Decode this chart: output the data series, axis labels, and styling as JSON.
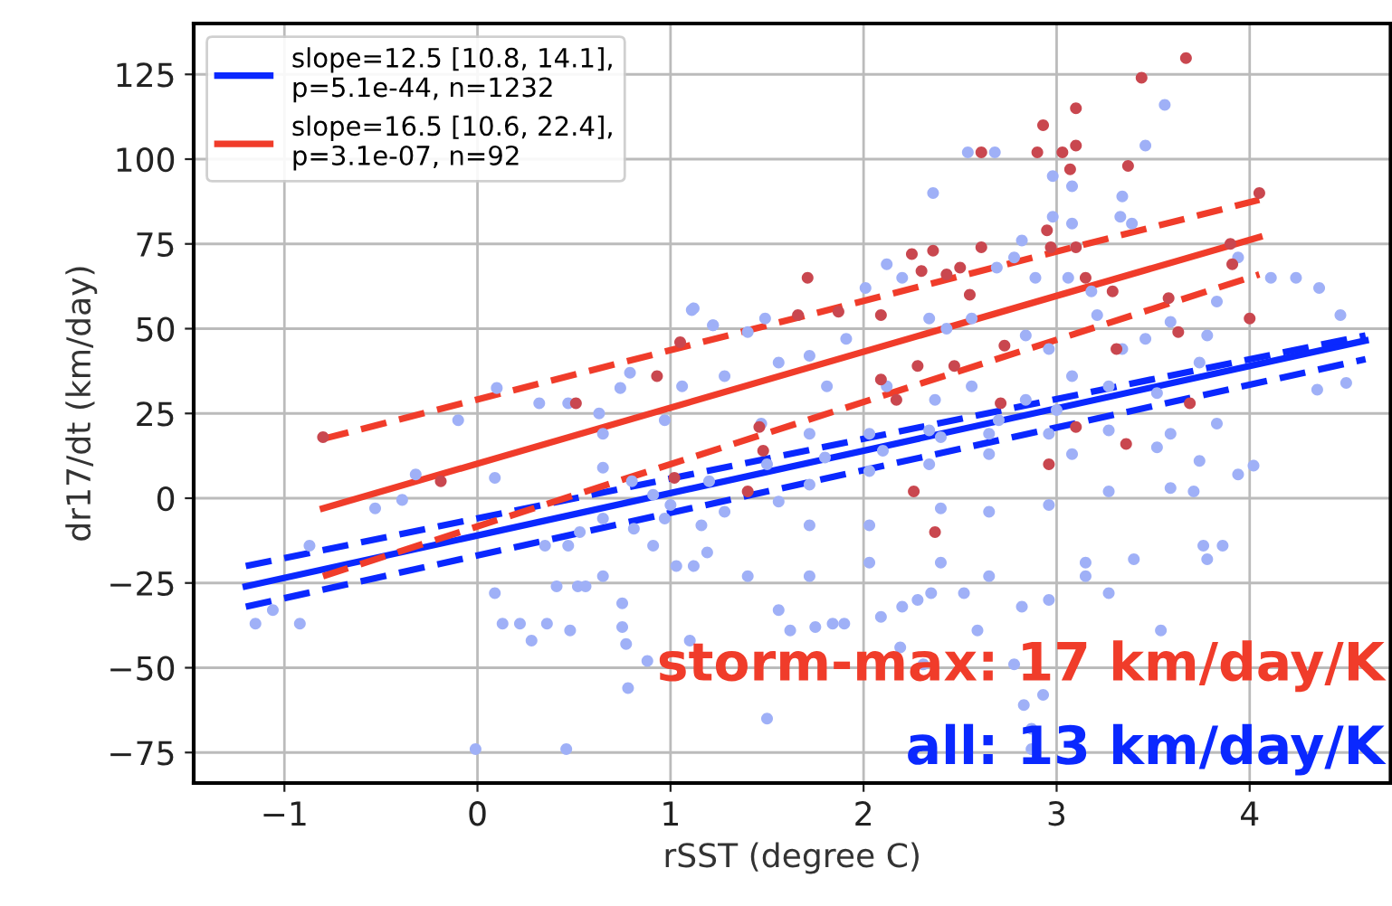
{
  "chart_data": {
    "type": "scatter",
    "xlabel": "rSST (degree C)",
    "ylabel": "dr17/dt (km/day)",
    "xlim": [
      -1.47,
      4.73
    ],
    "ylim": [
      -84,
      140
    ],
    "xticks": [
      -1,
      0,
      1,
      2,
      3,
      4
    ],
    "yticks": [
      -75,
      -50,
      -25,
      0,
      25,
      50,
      75,
      100,
      125
    ],
    "grid": true,
    "legend": "top left",
    "annotations": [
      "storm-max: 17 km/day/K",
      "all: 13 km/day/K"
    ],
    "series": [
      {
        "marker": "circle",
        "color": "#9fb0f7",
        "x": [
          1.11,
          1.22,
          0.1,
          -0.1,
          0.32,
          0.47,
          0.79,
          0.74,
          0.63,
          0.65,
          0.97,
          1.06,
          -0.32,
          -0.39,
          -0.53,
          -0.87,
          -1.06,
          -1.15,
          -0.92,
          0.09,
          0.09,
          0.13,
          0.22,
          0.28,
          0.36,
          0.41,
          0.52,
          0.56,
          0.65,
          0.75,
          0.75,
          0.77,
          0.78,
          0.88,
          -0.01,
          0.46,
          0.48,
          1.1,
          0.35,
          0.47,
          0.53,
          0.65,
          0.81,
          0.91,
          1.12,
          1.03,
          0.65,
          0.91,
          0.97,
          4.02,
          3.94,
          3.86,
          3.76,
          3.78,
          3.54,
          3.27,
          3.4,
          3.15,
          2.96,
          2.82,
          2.93,
          2.83,
          2.87,
          2.87,
          1.5,
          1.56,
          1.62,
          1.75,
          1.84,
          1.9,
          2.09,
          2.2,
          2.28,
          2.35,
          2.52,
          2.59,
          2.19,
          2.31,
          2.78,
          1.19,
          1.4,
          1.72,
          2.03,
          2.4,
          2.65,
          3.15,
          1.72,
          2.03,
          2.4,
          2.65,
          2.96,
          3.27,
          3.59,
          3.71,
          3.74,
          3.52,
          3.08,
          2.65,
          2.34,
          2.03,
          1.72,
          1.56,
          1.28,
          1.16,
          3.56,
          3.46,
          2.54,
          2.68,
          2.98,
          3.08,
          2.36,
          3.34,
          3.33,
          3.39,
          2.98,
          2.82,
          3.08,
          4.47,
          4.36,
          4.24,
          4.11,
          4.5,
          4.35,
          3.94,
          3.83,
          3.78,
          2.12,
          2.2,
          2.01,
          1.49,
          1.4,
          1.22,
          1.12,
          2.78,
          2.69,
          2.89,
          3.06,
          3.18,
          2.56,
          2.34,
          2.43,
          2.84,
          2.96,
          3.21,
          3.34,
          3.46,
          3.59,
          1.91,
          1.72,
          1.56,
          1.28,
          1.81,
          2.12,
          2.37,
          2.56,
          2.84,
          3.08,
          3.27,
          3.52,
          3.74,
          3.83,
          3.59,
          3.27,
          2.96,
          2.65,
          2.34,
          2.03,
          1.72,
          1.47,
          1.2,
          1.5,
          1.8,
          2.1,
          2.4,
          2.7,
          3.0,
          1.0,
          0.8
        ],
        "values": [
          55.5,
          51,
          32.5,
          23,
          28,
          28,
          37,
          32.5,
          25,
          19,
          23,
          33,
          7,
          -0.5,
          -3,
          -14,
          -33,
          -37,
          -37,
          6,
          -28,
          -37,
          -37,
          -42,
          -37,
          -26,
          -26,
          -26,
          -23,
          -31,
          -38,
          -43,
          -56,
          -48,
          -74,
          -74,
          -39,
          -42,
          -14,
          -14,
          -10,
          -6,
          -9,
          1,
          -20,
          -20,
          9,
          -14,
          -6,
          9.6,
          7,
          -14,
          -14,
          -18,
          -39,
          -28,
          -18,
          -23,
          -30,
          -32,
          -58,
          -61,
          -74,
          -68,
          -65,
          -33,
          -39,
          -38,
          -37,
          -37,
          -35,
          -32,
          -30,
          -28,
          -28,
          -39,
          -44,
          -49,
          -49,
          -16,
          -23,
          -23,
          -19,
          -19,
          -23,
          -19,
          -8,
          -8,
          -3,
          -4,
          -2,
          2,
          3,
          2,
          11,
          15,
          13,
          13,
          10,
          8,
          4,
          -1,
          -4,
          -8,
          116,
          104,
          102,
          102,
          95,
          92,
          90,
          89,
          83,
          81,
          83,
          76,
          81,
          54,
          62,
          65,
          65,
          34,
          32,
          71,
          58,
          48,
          69,
          65,
          62,
          53,
          49,
          51,
          56,
          71,
          68,
          65,
          65,
          61,
          53,
          53,
          50,
          48,
          44,
          54,
          44,
          47,
          52,
          47,
          42,
          40,
          36,
          33,
          33,
          29,
          33,
          29,
          36,
          33,
          31,
          40,
          22,
          19,
          20,
          19,
          19,
          20,
          19,
          19,
          22,
          5,
          10,
          12,
          14,
          18,
          23,
          26,
          -2,
          5
        ]
      },
      {
        "marker": "circle",
        "color": "#c9474f",
        "x": [
          3.67,
          3.44,
          3.1,
          2.93,
          3.1,
          2.9,
          3.03,
          2.61,
          3.07,
          3.37,
          4.05,
          2.95,
          2.97,
          3.1,
          2.36,
          2.25,
          2.61,
          2.5,
          2.3,
          1.71,
          2.43,
          2.55,
          3.91,
          3.9,
          4.0,
          3.58,
          3.63,
          3.29,
          3.15,
          1.87,
          1.66,
          2.09,
          3.31,
          2.73,
          2.28,
          2.09,
          2.47,
          2.17,
          2.71,
          3.69,
          3.1,
          3.36,
          1.46,
          -0.8,
          0.51,
          0.93,
          1.05,
          -0.19,
          1.02,
          1.48,
          1.4,
          2.26,
          2.37,
          2.96
        ],
        "values": [
          129.8,
          124,
          115,
          110,
          104,
          102,
          102,
          102,
          97,
          98,
          90,
          79,
          74,
          74,
          73,
          72,
          74,
          68,
          67,
          65,
          66,
          60,
          69,
          75,
          53,
          59,
          49,
          61,
          65,
          55,
          54,
          54,
          44,
          45,
          39,
          35,
          39,
          29,
          28,
          28,
          21,
          16,
          21,
          18,
          28,
          36,
          46,
          5,
          6,
          14,
          2,
          2,
          -10,
          10
        ]
      },
      {
        "type": "line",
        "name": "slope=12.5 [10.8, 14.1],\np=5.1e-44, n=1232",
        "color": "#0a28ff",
        "x": [
          -1.2,
          4.6
        ],
        "values": [
          -26,
          46.5
        ]
      },
      {
        "type": "line",
        "line_style": "dashed",
        "color": "#0a28ff",
        "x": [
          -1.2,
          4.6
        ],
        "values": [
          -20,
          48
        ]
      },
      {
        "type": "line",
        "line_style": "dashed",
        "color": "#0a28ff",
        "x": [
          -1.2,
          4.6
        ],
        "values": [
          -32,
          41
        ]
      },
      {
        "type": "line",
        "name": "slope=16.5 [10.6, 22.4],\np=3.1e-07, n=92",
        "color": "#f03c2a",
        "x": [
          -0.8,
          4.05
        ],
        "values": [
          -3,
          77
        ]
      },
      {
        "type": "line",
        "line_style": "dashed",
        "color": "#f03c2a",
        "x": [
          -0.8,
          4.05
        ],
        "values": [
          17.5,
          88
        ]
      },
      {
        "type": "line",
        "line_style": "dashed",
        "color": "#f03c2a",
        "x": [
          -0.8,
          4.05
        ],
        "values": [
          -23,
          66
        ]
      }
    ]
  }
}
